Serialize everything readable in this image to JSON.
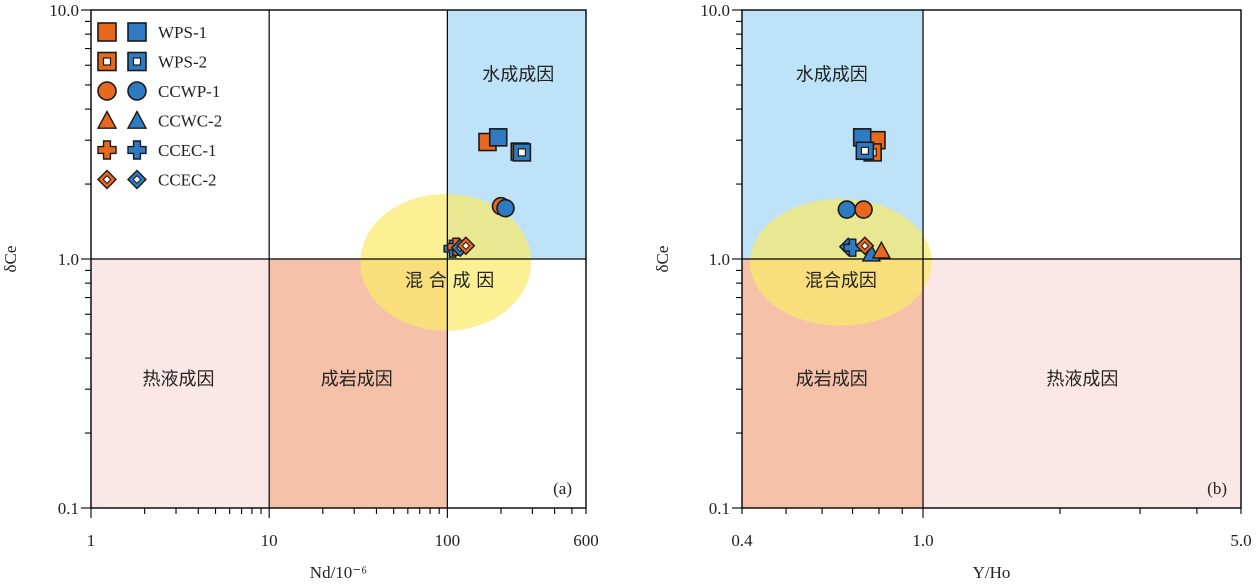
{
  "colors": {
    "orange": "#E8691E",
    "blue": "#2E7BC4",
    "hydro_region": "#BEE3F8",
    "thermal_region": "#FCE7E7",
    "diagenetic_region": "#F5C1A8",
    "mixed_ellipse": "#F9EA6B",
    "outline": "#1a1a1a"
  },
  "legend": {
    "items": [
      {
        "label": "WPS-1",
        "marker": "square"
      },
      {
        "label": "WPS-2",
        "marker": "square-open"
      },
      {
        "label": "CCWP-1",
        "marker": "circle"
      },
      {
        "label": "CCWC-2",
        "marker": "triangle"
      },
      {
        "label": "CCEC-1",
        "marker": "cross"
      },
      {
        "label": "CCEC-2",
        "marker": "diamond-open"
      }
    ]
  },
  "chart_data": [
    {
      "type": "scatter",
      "panel": "(a)",
      "xlabel": "Nd/10⁻⁶",
      "ylabel": "δCe",
      "xscale": "log",
      "yscale": "log",
      "xlim": [
        1,
        600
      ],
      "ylim": [
        0.1,
        10
      ],
      "xticks": [
        {
          "v": 1,
          "label": "1"
        },
        {
          "v": 10,
          "label": "10"
        },
        {
          "v": 100,
          "label": "100"
        },
        {
          "v": 600,
          "label": "600"
        }
      ],
      "yticks": [
        {
          "v": 0.1,
          "label": "0.1"
        },
        {
          "v": 1,
          "label": "1.0"
        },
        {
          "v": 10,
          "label": "10.0"
        }
      ],
      "dividers": {
        "x": [
          10,
          100
        ],
        "y": [
          1
        ]
      },
      "regions": [
        {
          "name": "hydrogenetic",
          "label": "水成成因",
          "x": [
            100,
            600
          ],
          "y": [
            1,
            10
          ],
          "fill": "hydro_region",
          "label_at": [
            250,
            5.5
          ]
        },
        {
          "name": "hydrothermal",
          "label": "热液成因",
          "x": [
            1,
            10
          ],
          "y": [
            0.1,
            1
          ],
          "fill": "thermal_region",
          "label_at": [
            3.1,
            0.33
          ]
        },
        {
          "name": "diagenetic",
          "label": "成岩成因",
          "x": [
            10,
            100
          ],
          "y": [
            0.1,
            1
          ],
          "fill": "diagenetic_region",
          "label_at": [
            31,
            0.33
          ]
        },
        {
          "name": "mixed",
          "label": "混 合 成 因",
          "shape": "ellipse",
          "center": [
            98,
            0.97
          ],
          "rx_decades": 0.48,
          "ry_decades": 0.275,
          "fill": "mixed_ellipse",
          "label_at": [
            103,
            0.82
          ]
        }
      ],
      "series": [
        {
          "name": "WPS-1",
          "marker": "square",
          "color": "orange",
          "points": [
            [
              168,
              2.95
            ]
          ]
        },
        {
          "name": "WPS-1",
          "marker": "square",
          "color": "blue",
          "points": [
            [
              193,
              3.08
            ]
          ]
        },
        {
          "name": "WPS-2",
          "marker": "square-open",
          "color": "orange",
          "points": [
            [
              255,
              2.7
            ]
          ]
        },
        {
          "name": "WPS-2",
          "marker": "square-open",
          "color": "blue",
          "points": [
            [
              262,
              2.68
            ]
          ]
        },
        {
          "name": "CCWP-1",
          "marker": "circle",
          "color": "orange",
          "points": [
            [
              200,
              1.63
            ]
          ]
        },
        {
          "name": "CCWP-1",
          "marker": "circle",
          "color": "blue",
          "points": [
            [
              212,
              1.6
            ]
          ]
        },
        {
          "name": "CCEC-1",
          "marker": "cross",
          "color": "blue",
          "points": [
            [
              107,
              1.1
            ]
          ]
        },
        {
          "name": "CCEC-1",
          "marker": "cross",
          "color": "orange",
          "points": [
            [
              112,
              1.12
            ]
          ]
        },
        {
          "name": "CCEC-2",
          "marker": "diamond-open",
          "color": "blue",
          "points": [
            [
              118,
              1.11
            ]
          ]
        },
        {
          "name": "CCEC-2",
          "marker": "diamond-open",
          "color": "orange",
          "points": [
            [
              127,
              1.13
            ]
          ]
        }
      ]
    },
    {
      "type": "scatter",
      "panel": "(b)",
      "xlabel": "Y/Ho",
      "ylabel": "δCe",
      "xscale": "log",
      "yscale": "log",
      "xlim": [
        0.4,
        5.0
      ],
      "ylim": [
        0.1,
        10
      ],
      "xticks": [
        {
          "v": 0.4,
          "label": "0.4"
        },
        {
          "v": 1,
          "label": "1.0"
        },
        {
          "v": 5,
          "label": "5.0"
        }
      ],
      "yticks": [
        {
          "v": 0.1,
          "label": "0.1"
        },
        {
          "v": 1,
          "label": "1.0"
        },
        {
          "v": 10,
          "label": "10.0"
        }
      ],
      "dividers": {
        "x": [
          1
        ],
        "y": [
          1
        ]
      },
      "regions": [
        {
          "name": "hydrogenetic",
          "label": "水成成因",
          "x": [
            0.4,
            1
          ],
          "y": [
            1,
            10
          ],
          "fill": "hydro_region",
          "label_at": [
            0.63,
            5.5
          ]
        },
        {
          "name": "diagenetic",
          "label": "成岩成因",
          "x": [
            0.4,
            1
          ],
          "y": [
            0.1,
            1
          ],
          "fill": "diagenetic_region",
          "label_at": [
            0.63,
            0.33
          ]
        },
        {
          "name": "hydrothermal",
          "label": "热液成因",
          "x": [
            1,
            5
          ],
          "y": [
            0.1,
            1
          ],
          "fill": "thermal_region",
          "label_at": [
            2.24,
            0.33
          ]
        },
        {
          "name": "mixed",
          "label": "混合成因",
          "shape": "ellipse",
          "center": [
            0.66,
            0.97
          ],
          "rx_decades": 0.2,
          "ry_decades": 0.255,
          "fill": "mixed_ellipse",
          "label_at": [
            0.66,
            0.82
          ]
        }
      ],
      "series": [
        {
          "name": "WPS-1",
          "marker": "square",
          "color": "orange",
          "points": [
            [
              0.79,
              3.0
            ]
          ]
        },
        {
          "name": "WPS-1",
          "marker": "square",
          "color": "blue",
          "points": [
            [
              0.735,
              3.08
            ]
          ]
        },
        {
          "name": "WPS-2",
          "marker": "square-open",
          "color": "orange",
          "points": [
            [
              0.775,
              2.68
            ]
          ]
        },
        {
          "name": "WPS-2",
          "marker": "square-open",
          "color": "blue",
          "points": [
            [
              0.745,
              2.72
            ]
          ]
        },
        {
          "name": "CCWP-1",
          "marker": "circle",
          "color": "blue",
          "points": [
            [
              0.68,
              1.58
            ]
          ]
        },
        {
          "name": "CCWP-1",
          "marker": "circle",
          "color": "orange",
          "points": [
            [
              0.74,
              1.58
            ]
          ]
        },
        {
          "name": "CCWC-2",
          "marker": "triangle",
          "color": "blue",
          "points": [
            [
              0.77,
              1.05
            ]
          ]
        },
        {
          "name": "CCWC-2",
          "marker": "triangle",
          "color": "orange",
          "points": [
            [
              0.81,
              1.08
            ]
          ]
        },
        {
          "name": "CCEC-2",
          "marker": "diamond-open",
          "color": "blue",
          "points": [
            [
              0.685,
              1.12
            ]
          ]
        },
        {
          "name": "CCEC-1",
          "marker": "cross",
          "color": "blue",
          "points": [
            [
              0.7,
              1.11
            ]
          ]
        },
        {
          "name": "CCEC-2",
          "marker": "diamond-open",
          "color": "orange",
          "points": [
            [
              0.745,
              1.13
            ]
          ]
        }
      ]
    }
  ]
}
